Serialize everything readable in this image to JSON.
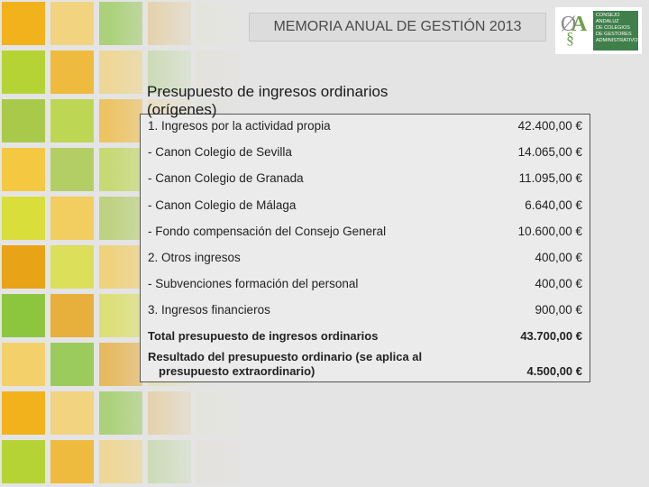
{
  "header": {
    "title": "MEMORIA ANUAL DE GESTIÓN 2013"
  },
  "logo": {
    "mark": "OA",
    "text_lines": [
      "CONSEJO",
      "ANDALUZ",
      "DE COLEGIOS",
      "DE GESTORES",
      "ADMINISTRATIVOS"
    ]
  },
  "section": {
    "title": "Presupuesto de ingresos ordinarios (orígenes)"
  },
  "rows": [
    {
      "label": "1. Ingresos por la actividad propia",
      "value": "42.400,00 €"
    },
    {
      "label": "- Canon Colegio de Sevilla",
      "value": "14.065,00 €"
    },
    {
      "label": "- Canon Colegio de Granada",
      "value": "11.095,00 €"
    },
    {
      "label": "- Canon Colegio de Málaga",
      "value": "6.640,00 €"
    },
    {
      "label": "- Fondo compensación del Consejo General",
      "value": "10.600,00 €"
    },
    {
      "label": "2. Otros ingresos",
      "value": "400,00 €"
    },
    {
      "label": "- Subvenciones formación del personal",
      "value": "400,00 €"
    },
    {
      "label": "3. Ingresos financieros",
      "value": "900,00 €"
    }
  ],
  "totals": {
    "total_label": "Total presupuesto de ingresos ordinarios",
    "total_value": "43.700,00 €",
    "result_label_line1": "Resultado del presupuesto ordinario (se aplica al",
    "result_label_line2": "presupuesto extraordinario)",
    "result_value": "4.500,00 €"
  },
  "colors": {
    "background": "#e4e4e4",
    "mosaic": [
      "#f2b21b",
      "#f5c842",
      "#8cc63f",
      "#b5d334",
      "#d9de3a",
      "#f4d06a",
      "#a9c94a",
      "#e8a317"
    ],
    "logo_green": "#3f7f4a"
  }
}
